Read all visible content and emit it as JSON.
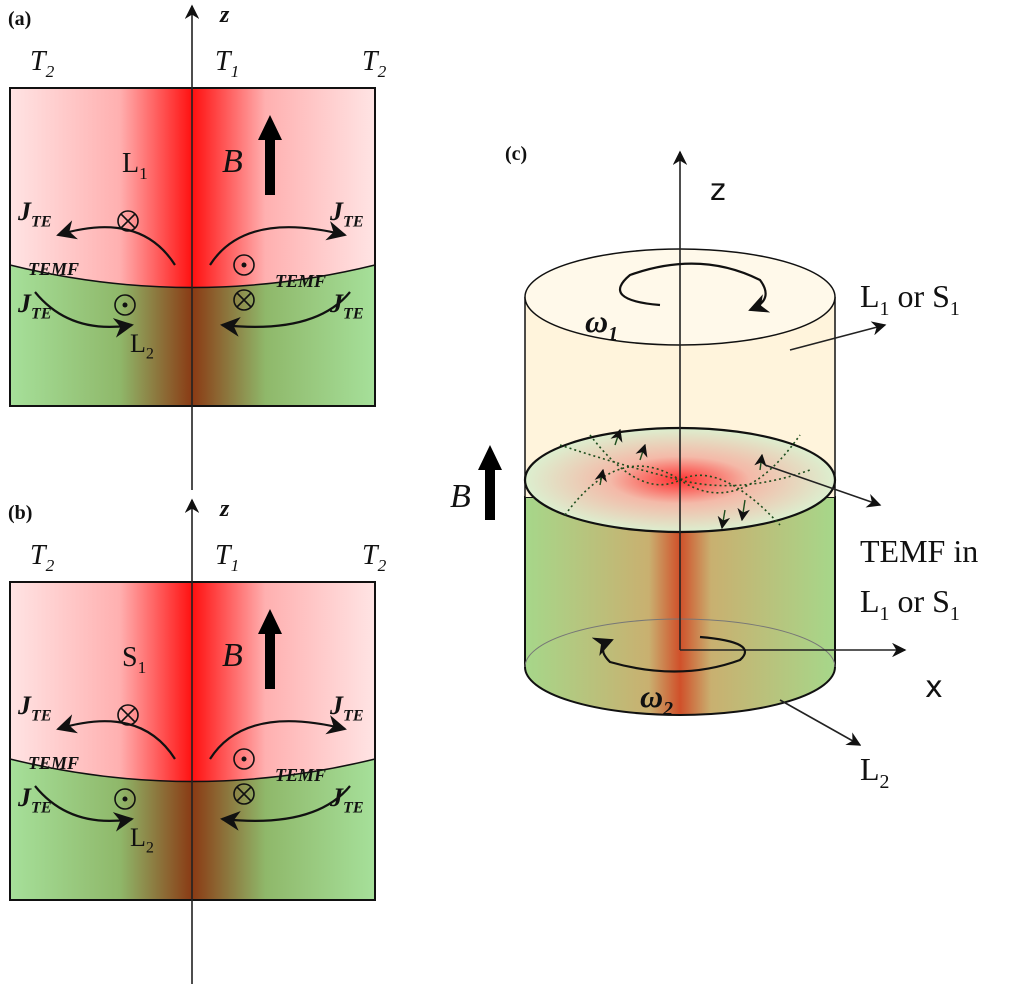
{
  "panel_a": {
    "label": "(a)",
    "axis": "z",
    "temperatures": [
      [
        {
          "text": "T"
        },
        {
          "text": "2",
          "sub": true
        }
      ],
      [
        {
          "text": "T"
        },
        {
          "text": "1",
          "sub": true
        }
      ],
      [
        {
          "text": "T"
        },
        {
          "text": "2",
          "sub": true
        }
      ]
    ],
    "upper_phase": [
      {
        "text": "L"
      },
      {
        "text": "1",
        "sub": true
      }
    ],
    "lower_phase": [
      {
        "text": "L"
      },
      {
        "text": "2",
        "sub": true
      }
    ],
    "field": "B",
    "currents": [
      [
        {
          "text": "J"
        },
        {
          "text": "TE",
          "sub": true
        }
      ],
      [
        {
          "text": "J"
        },
        {
          "text": "TE",
          "sub": true
        }
      ],
      [
        {
          "text": "J"
        },
        {
          "text": "TE",
          "sub": true
        }
      ],
      [
        {
          "text": "J"
        },
        {
          "text": "TE",
          "sub": true
        }
      ]
    ],
    "temf": [
      "TEMF",
      "TEMF"
    ]
  },
  "panel_b": {
    "label": "(b)",
    "axis": "z",
    "temperatures": [
      [
        {
          "text": "T"
        },
        {
          "text": "2",
          "sub": true
        }
      ],
      [
        {
          "text": "T"
        },
        {
          "text": "1",
          "sub": true
        }
      ],
      [
        {
          "text": "T"
        },
        {
          "text": "2",
          "sub": true
        }
      ]
    ],
    "upper_phase": [
      {
        "text": "S"
      },
      {
        "text": "1",
        "sub": true
      }
    ],
    "lower_phase": [
      {
        "text": "L"
      },
      {
        "text": "2",
        "sub": true
      }
    ],
    "field": "B",
    "currents": [
      [
        {
          "text": "J"
        },
        {
          "text": "TE",
          "sub": true
        }
      ],
      [
        {
          "text": "J"
        },
        {
          "text": "TE",
          "sub": true
        }
      ],
      [
        {
          "text": "J"
        },
        {
          "text": "TE",
          "sub": true
        }
      ],
      [
        {
          "text": "J"
        },
        {
          "text": "TE",
          "sub": true
        }
      ]
    ],
    "temf": [
      "TEMF",
      "TEMF"
    ]
  },
  "panel_c": {
    "label": "(c)",
    "axis_z": "z",
    "axis_x": "x",
    "field": "B",
    "omega_top": [
      {
        "text": "ω"
      },
      {
        "text": "1",
        "sub": true
      }
    ],
    "omega_bottom": [
      {
        "text": "ω"
      },
      {
        "text": "2",
        "sub": true
      }
    ],
    "upper_label": [
      {
        "text": "L"
      },
      {
        "text": "1",
        "sub": true
      },
      {
        "text": " or S"
      },
      {
        "text": "1",
        "sub": true
      }
    ],
    "temf_line1": [
      {
        "text": "TEMF in"
      }
    ],
    "temf_line2": [
      {
        "text": "L"
      },
      {
        "text": "1",
        "sub": true
      },
      {
        "text": " or S"
      },
      {
        "text": "1",
        "sub": true
      }
    ],
    "lower_label": [
      {
        "text": "L"
      },
      {
        "text": "2",
        "sub": true
      }
    ]
  }
}
